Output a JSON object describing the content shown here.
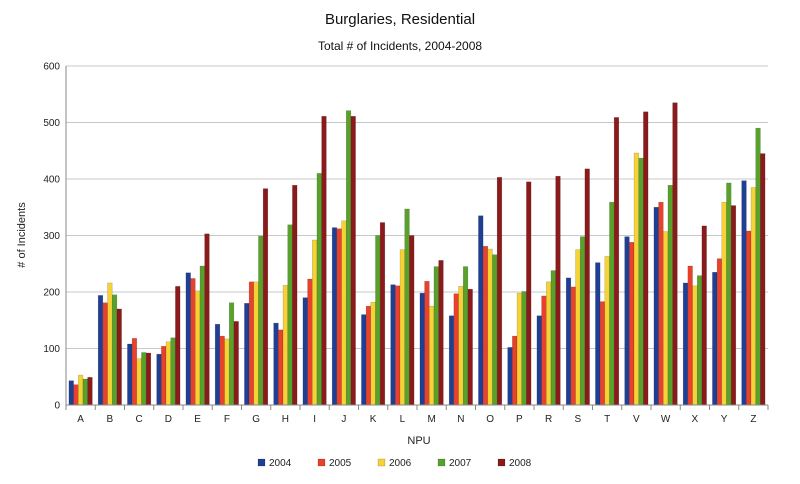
{
  "chart_data": {
    "type": "bar",
    "title": "Burglaries, Residential",
    "subtitle": "Total # of Incidents, 2004-2008",
    "xlabel": "NPU",
    "ylabel": "# of Incidents",
    "ylim": [
      0,
      600
    ],
    "yticks": [
      0,
      100,
      200,
      300,
      400,
      500,
      600
    ],
    "grid": true,
    "legend_position": "bottom",
    "categories": [
      "A",
      "B",
      "C",
      "D",
      "E",
      "F",
      "G",
      "H",
      "I",
      "J",
      "K",
      "L",
      "M",
      "N",
      "O",
      "P",
      "R",
      "S",
      "T",
      "V",
      "W",
      "X",
      "Y",
      "Z"
    ],
    "series": [
      {
        "name": "2004",
        "color": "#1f3f95",
        "values": [
          43,
          194,
          108,
          90,
          234,
          143,
          180,
          145,
          190,
          314,
          160,
          213,
          198,
          158,
          335,
          102,
          158,
          225,
          252,
          298,
          350,
          216,
          235,
          397
        ]
      },
      {
        "name": "2005",
        "color": "#e8412c",
        "values": [
          36,
          181,
          118,
          104,
          224,
          122,
          218,
          133,
          223,
          312,
          175,
          211,
          219,
          197,
          281,
          122,
          193,
          209,
          183,
          288,
          359,
          246,
          259,
          308
        ]
      },
      {
        "name": "2006",
        "color": "#f6d237",
        "values": [
          53,
          216,
          82,
          112,
          202,
          117,
          218,
          212,
          292,
          326,
          182,
          275,
          175,
          210,
          276,
          198,
          218,
          275,
          263,
          446,
          307,
          211,
          359,
          385
        ]
      },
      {
        "name": "2007",
        "color": "#58a22c",
        "values": [
          46,
          195,
          93,
          119,
          246,
          181,
          299,
          319,
          410,
          521,
          300,
          347,
          245,
          245,
          266,
          201,
          238,
          298,
          359,
          437,
          389,
          229,
          393,
          490
        ]
      },
      {
        "name": "2008",
        "color": "#8b1a1a",
        "values": [
          49,
          170,
          92,
          210,
          303,
          148,
          383,
          389,
          511,
          511,
          323,
          300,
          256,
          205,
          403,
          395,
          405,
          418,
          509,
          519,
          535,
          317,
          353,
          445
        ]
      }
    ]
  }
}
